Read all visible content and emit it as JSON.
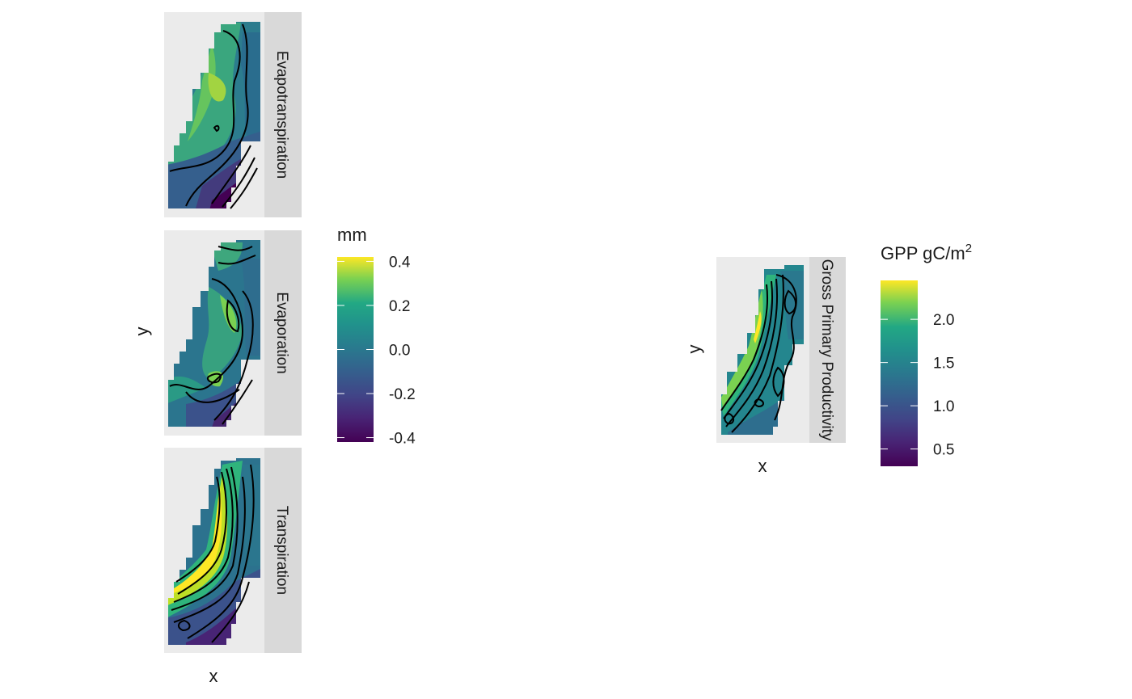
{
  "chart_data": [
    {
      "type": "heatmap",
      "subtype": "faceted-raster-map-with-contours",
      "facet_direction": "vertical",
      "strip_position": "right",
      "xlabel": "x",
      "ylabel": "y",
      "axis_ticks": "none",
      "panel_background": "#ebebeb",
      "strip_background": "#d9d9d9",
      "contour_color": "#000000",
      "facets": [
        {
          "label": "Evapotranspiration"
        },
        {
          "label": "Evaporation"
        },
        {
          "label": "Transpiration"
        }
      ],
      "legend": {
        "title": "mm",
        "position": "right",
        "colormap": "viridis",
        "range": [
          -0.42,
          0.42
        ],
        "ticks": [
          {
            "value": 0.4,
            "label": "0.4"
          },
          {
            "value": 0.2,
            "label": "0.2"
          },
          {
            "value": 0.0,
            "label": "0.0"
          },
          {
            "value": -0.2,
            "label": "-0.2"
          },
          {
            "value": -0.4,
            "label": "-0.4"
          }
        ]
      }
    },
    {
      "type": "heatmap",
      "subtype": "faceted-raster-map-with-contours",
      "strip_position": "right",
      "xlabel": "x",
      "ylabel": "y",
      "axis_ticks": "none",
      "panel_background": "#ebebeb",
      "strip_background": "#d9d9d9",
      "contour_color": "#000000",
      "facets": [
        {
          "label": "Gross Primary Productivity"
        }
      ],
      "legend": {
        "title": "GPP gC/m",
        "title_superscript": "2",
        "position": "right",
        "colormap": "viridis",
        "range": [
          0.3,
          2.45
        ],
        "ticks": [
          {
            "value": 2.0,
            "label": "2.0"
          },
          {
            "value": 1.5,
            "label": "1.5"
          },
          {
            "value": 1.0,
            "label": "1.0"
          },
          {
            "value": 0.5,
            "label": "0.5"
          }
        ]
      }
    }
  ]
}
